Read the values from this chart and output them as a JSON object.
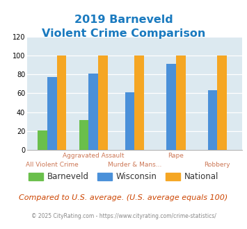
{
  "title_line1": "2019 Barneveld",
  "title_line2": "Violent Crime Comparison",
  "title_color": "#1a7abf",
  "categories": [
    "All Violent Crime",
    "Aggravated Assault",
    "Murder & Mans...",
    "Rape",
    "Robbery"
  ],
  "barneveld": [
    21,
    32,
    null,
    null,
    null
  ],
  "wisconsin": [
    77,
    81,
    61,
    91,
    63
  ],
  "national": [
    100,
    100,
    100,
    100,
    100
  ],
  "bar_color_barneveld": "#6abf4b",
  "bar_color_wisconsin": "#4a90d9",
  "bar_color_national": "#f5a623",
  "ylim": [
    0,
    120
  ],
  "yticks": [
    0,
    20,
    40,
    60,
    80,
    100,
    120
  ],
  "legend_labels": [
    "Barneveld",
    "Wisconsin",
    "National"
  ],
  "footnote1": "Compared to U.S. average. (U.S. average equals 100)",
  "footnote2": "© 2025 CityRating.com - https://www.cityrating.com/crime-statistics/",
  "footnote1_color": "#cc4400",
  "footnote2_color": "#888888",
  "bg_color": "#dce9f0",
  "xtick_color": "#cc7755",
  "bar_width": 0.23
}
